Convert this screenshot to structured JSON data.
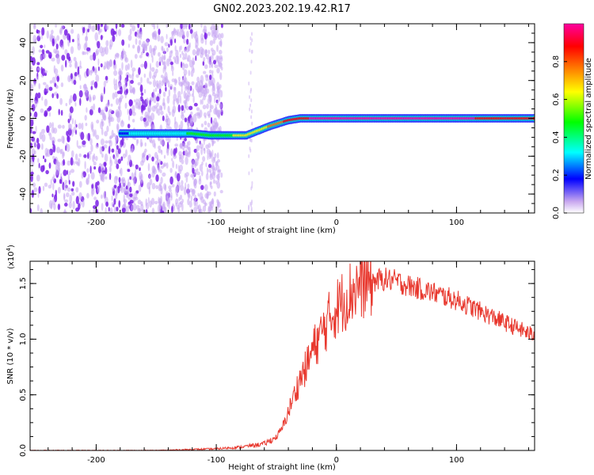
{
  "title": "GN02.2023.202.19.42.R17",
  "chart_data": [
    {
      "type": "heatmap",
      "xlabel": "Height of straight line (km)",
      "ylabel": "Frequency (Hz)",
      "xlim": [
        -255,
        165
      ],
      "ylim": [
        -50,
        50
      ],
      "xticks": [
        -200,
        -100,
        0,
        100
      ],
      "yticks": [
        -40,
        -20,
        0,
        20,
        40
      ],
      "colorbar": {
        "label": "Normalized spectral amplitude",
        "range": [
          0,
          1
        ],
        "ticks": [
          0.0,
          0.2,
          0.4,
          0.6,
          0.8
        ],
        "tick_labels": [
          "0.0",
          "0.2",
          "0.4",
          "0.6",
          "0.8"
        ],
        "colormap": [
          "#ffffff",
          "#8a2be2",
          "#0000ff",
          "#00ffff",
          "#00ff00",
          "#ffff00",
          "#ff8000",
          "#ff0000",
          "#ff00a0"
        ]
      },
      "noise_region_x": [
        -255,
        -105
      ],
      "signal_track": {
        "x": [
          -180,
          -150,
          -120,
          -105,
          -75,
          -55,
          -40,
          -30,
          -20,
          0,
          100,
          165
        ],
        "freq": [
          -8,
          -8,
          -8,
          -9,
          -9,
          -4,
          -1,
          0,
          0,
          0,
          0,
          0
        ],
        "amplitude": [
          0.3,
          0.35,
          0.45,
          0.5,
          0.6,
          0.7,
          0.85,
          0.9,
          0.95,
          0.95,
          0.95,
          0.9
        ]
      }
    },
    {
      "type": "line",
      "xlabel": "Height of straight line (km)",
      "ylabel": "SNR (10 * v/v)",
      "y_multiplier_label": "(x10",
      "y_multiplier_exp": "4",
      "xlim": [
        -255,
        165
      ],
      "ylim": [
        0,
        17000
      ],
      "xticks": [
        -200,
        -100,
        0,
        100
      ],
      "yticks": [
        0,
        5000,
        10000,
        15000
      ],
      "ytick_labels": [
        "0.0",
        "0.5",
        "1.0",
        "1.5"
      ],
      "series": [
        {
          "color": "#e8382e",
          "x": [
            -255,
            -150,
            -100,
            -80,
            -60,
            -50,
            -45,
            -40,
            -35,
            -30,
            -25,
            -20,
            -15,
            -10,
            -5,
            0,
            10,
            20,
            30,
            40,
            50,
            60,
            80,
            100,
            120,
            140,
            165
          ],
          "y": [
            0,
            0,
            150,
            300,
            600,
            1200,
            2000,
            3500,
            5000,
            6500,
            7500,
            9000,
            10000,
            11000,
            12000,
            12800,
            14000,
            15000,
            15200,
            15400,
            15200,
            14800,
            14200,
            13500,
            12500,
            11500,
            10300
          ]
        }
      ]
    }
  ]
}
